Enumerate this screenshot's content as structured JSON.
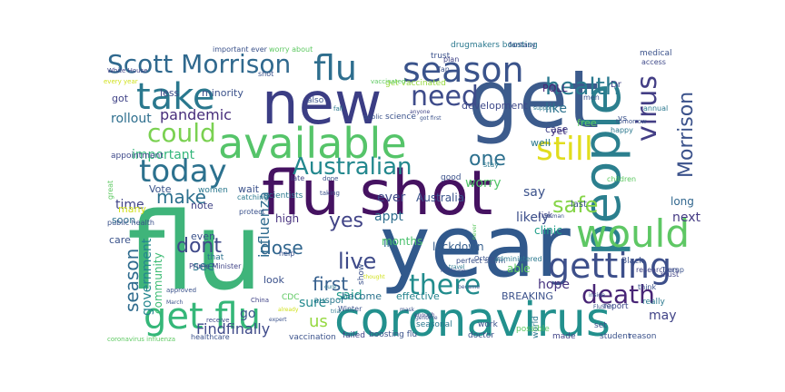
{
  "wordcloud": {
    "words": [
      {
        "text": "flu",
        "color": "#3fb47a"
      },
      {
        "text": "year",
        "color": "#31598c"
      },
      {
        "text": "flu shot",
        "color": "#451261"
      },
      {
        "text": "new",
        "color": "#3b3d84"
      },
      {
        "text": "get",
        "color": "#3c5b8c"
      },
      {
        "text": "coronavirus",
        "color": "#22908d"
      },
      {
        "text": "available",
        "color": "#55c469"
      },
      {
        "text": "people",
        "color": "#2b7f8e"
      },
      {
        "text": "would",
        "color": "#5ec764"
      },
      {
        "text": "take",
        "color": "#2a788e"
      },
      {
        "text": "season",
        "color": "#3a538b"
      },
      {
        "text": "flu",
        "color": "#2e6e8e"
      },
      {
        "text": "today",
        "color": "#2c718e"
      },
      {
        "text": "getting",
        "color": "#3d4f8a"
      },
      {
        "text": "get flu",
        "color": "#35b779"
      },
      {
        "text": "need",
        "color": "#3e4c8a"
      },
      {
        "text": "still",
        "color": "#e1dd1e"
      },
      {
        "text": "Scott Morrison",
        "color": "#30698e"
      },
      {
        "text": "health",
        "color": "#29798e"
      },
      {
        "text": "virus",
        "color": "#433e85"
      },
      {
        "text": "could",
        "color": "#7ad151"
      },
      {
        "text": "Australian",
        "color": "#23888e"
      },
      {
        "text": "there",
        "color": "#228c8d"
      },
      {
        "text": "death",
        "color": "#482576"
      },
      {
        "text": "live",
        "color": "#3e4a89"
      },
      {
        "text": "Morrison",
        "color": "#3b528b"
      },
      {
        "text": "safe",
        "color": "#86d549"
      },
      {
        "text": "one",
        "color": "#2d708e"
      },
      {
        "text": "make",
        "color": "#2d708e"
      },
      {
        "text": "dont",
        "color": "#3e4989"
      },
      {
        "text": "season",
        "color": "#2f6b8e"
      },
      {
        "text": "dose",
        "color": "#31668e"
      },
      {
        "text": "first",
        "color": "#355f8d"
      },
      {
        "text": "us",
        "color": "#95d840"
      },
      {
        "text": "yes",
        "color": "#414487"
      },
      {
        "text": "pandemic",
        "color": "#472d7b"
      },
      {
        "text": "rollout",
        "color": "#2e6f8e"
      },
      {
        "text": "Findfinally",
        "color": "#3e4989"
      },
      {
        "text": "influenza",
        "color": "#2f6b8e"
      },
      {
        "text": "government",
        "color": "#24868e"
      },
      {
        "text": "community",
        "color": "#3dbc74"
      },
      {
        "text": "time",
        "color": "#414487"
      },
      {
        "text": "important",
        "color": "#32b67a"
      },
      {
        "text": "see",
        "color": "#2a778e"
      },
      {
        "text": "said",
        "color": "#1f9a8a"
      },
      {
        "text": "go",
        "color": "#3a538b"
      },
      {
        "text": "sure",
        "color": "#23898e"
      },
      {
        "text": "hope",
        "color": "#46337f"
      },
      {
        "text": "likely",
        "color": "#3c4f8a"
      },
      {
        "text": "next",
        "color": "#443a83"
      },
      {
        "text": "long",
        "color": "#31678e"
      },
      {
        "text": "may",
        "color": "#414487"
      },
      {
        "text": "like",
        "color": "#2c728e"
      },
      {
        "text": "worry",
        "color": "#52c569"
      },
      {
        "text": "say",
        "color": "#3b528b"
      },
      {
        "text": "ever",
        "color": "#3e4989"
      },
      {
        "text": "appt",
        "color": "#2e6e8e"
      },
      {
        "text": "Australia",
        "color": "#3a548c"
      },
      {
        "text": "clinic",
        "color": "#1f9e89"
      },
      {
        "text": "high",
        "color": "#46307e"
      },
      {
        "text": "Im",
        "color": "#2d708e"
      },
      {
        "text": "lockdown",
        "color": "#355e8d"
      },
      {
        "text": "months",
        "color": "#4ac16d"
      },
      {
        "text": "able",
        "color": "#5ec962"
      },
      {
        "text": "BREAKING",
        "color": "#3b518b"
      },
      {
        "text": "effective",
        "color": "#25838e"
      },
      {
        "text": "become",
        "color": "#2c738e"
      },
      {
        "text": "CDC",
        "color": "#5ec962"
      },
      {
        "text": "look",
        "color": "#3b518b"
      },
      {
        "text": "auspol",
        "color": "#2a788e"
      },
      {
        "text": "care",
        "color": "#3a538b"
      },
      {
        "text": "soon",
        "color": "#2d718e"
      },
      {
        "text": "many",
        "color": "#d0e11c"
      },
      {
        "text": "even",
        "color": "#3b528b"
      },
      {
        "text": "note",
        "color": "#414487"
      },
      {
        "text": "that",
        "color": "#2c728e"
      },
      {
        "text": "Vote",
        "color": "#3a538b"
      },
      {
        "text": "women",
        "color": "#2a788e"
      },
      {
        "text": "wait",
        "color": "#3b528b"
      },
      {
        "text": "scientists",
        "color": "#2a788e"
      },
      {
        "text": "less",
        "color": "#3e4989"
      },
      {
        "text": "minority",
        "color": "#3b528b"
      },
      {
        "text": "got",
        "color": "#414487"
      },
      {
        "text": "also",
        "color": "#3b528b"
      },
      {
        "text": "science",
        "color": "#3b528b"
      },
      {
        "text": "development",
        "color": "#3e4989"
      },
      {
        "text": "case",
        "color": "#414487"
      },
      {
        "text": "POLL",
        "color": "#482475"
      },
      {
        "text": "yet",
        "color": "#46337f"
      },
      {
        "text": "well",
        "color": "#2a788e"
      },
      {
        "text": "vs",
        "color": "#3b528b"
      },
      {
        "text": "free",
        "color": "#5ec962"
      },
      {
        "text": "get vaccinated",
        "color": "#95d840"
      },
      {
        "text": "appointment",
        "color": "#3e4989"
      },
      {
        "text": "White House",
        "color": "#414487"
      },
      {
        "text": "every year",
        "color": "#d0e11c"
      },
      {
        "text": "trust",
        "color": "#3b528b"
      },
      {
        "text": "drugmakers boosting",
        "color": "#2a788e"
      },
      {
        "text": "fantasy",
        "color": "#3b528b"
      },
      {
        "text": "plan",
        "color": "#414487"
      },
      {
        "text": "fan",
        "color": "#3b528b"
      },
      {
        "text": "important ever",
        "color": "#3b528b"
      },
      {
        "text": "worry about",
        "color": "#5ec962"
      },
      {
        "text": "vaccinated",
        "color": "#5ec962"
      },
      {
        "text": "shot",
        "color": "#3b528b"
      },
      {
        "text": "fall",
        "color": "#2a788e"
      },
      {
        "text": "medical",
        "color": "#3b528b"
      },
      {
        "text": "access",
        "color": "#3e4989"
      },
      {
        "text": "annual",
        "color": "#2a788e"
      },
      {
        "text": "Dr",
        "color": "#414487"
      },
      {
        "text": "men",
        "color": "#3b528b"
      },
      {
        "text": "tomorrow",
        "color": "#3b528b"
      },
      {
        "text": "happy",
        "color": "#2a788e"
      },
      {
        "text": "children",
        "color": "#5ec962"
      },
      {
        "text": "last",
        "color": "#3b528b"
      },
      {
        "text": "risk",
        "color": "#414487"
      },
      {
        "text": "stay",
        "color": "#2a788e"
      },
      {
        "text": "good",
        "color": "#3b528b"
      },
      {
        "text": "late",
        "color": "#414487"
      },
      {
        "text": "help",
        "color": "#3b528b"
      },
      {
        "text": "catching",
        "color": "#2a788e"
      },
      {
        "text": "protect",
        "color": "#3b528b"
      },
      {
        "text": "public health",
        "color": "#3b528b"
      },
      {
        "text": "great",
        "color": "#5ec962"
      },
      {
        "text": "Prime Minister",
        "color": "#414487"
      },
      {
        "text": "perfect storm",
        "color": "#3b528b"
      },
      {
        "text": "Black",
        "color": "#3b528b"
      },
      {
        "text": "researchers",
        "color": "#414487"
      },
      {
        "text": "Trump",
        "color": "#3b528b"
      },
      {
        "text": "must",
        "color": "#414487"
      },
      {
        "text": "think",
        "color": "#3b528b"
      },
      {
        "text": "report",
        "color": "#3e4989"
      },
      {
        "text": "really",
        "color": "#2a788e"
      },
      {
        "text": "reason",
        "color": "#3b528b"
      },
      {
        "text": "student",
        "color": "#3b528b"
      },
      {
        "text": "made",
        "color": "#414487"
      },
      {
        "text": "set",
        "color": "#3b528b"
      },
      {
        "text": "world",
        "color": "#2a788e"
      },
      {
        "text": "possible",
        "color": "#5ec962"
      },
      {
        "text": "doctor",
        "color": "#3b528b"
      },
      {
        "text": "seasonal",
        "color": "#2a788e"
      },
      {
        "text": "work",
        "color": "#3b528b"
      },
      {
        "text": "boosting flu",
        "color": "#3b528b"
      },
      {
        "text": "failed",
        "color": "#414487"
      },
      {
        "text": "vaccination",
        "color": "#3b528b"
      },
      {
        "text": "healthcare",
        "color": "#3b528b"
      },
      {
        "text": "coronavirus influenza",
        "color": "#5ec962"
      },
      {
        "text": "receive",
        "color": "#3e4989"
      },
      {
        "text": "approved",
        "color": "#3b528b"
      },
      {
        "text": "Winter",
        "color": "#3b528b"
      },
      {
        "text": "October",
        "color": "#3b528b"
      },
      {
        "text": "administered",
        "color": "#2a788e"
      },
      {
        "text": "genome",
        "color": "#3b528b"
      },
      {
        "text": "mask",
        "color": "#3b528b"
      },
      {
        "text": "travel",
        "color": "#2a788e"
      },
      {
        "text": "medicine",
        "color": "#3b528b"
      },
      {
        "text": "China",
        "color": "#414487"
      },
      {
        "text": "March",
        "color": "#3b528b"
      },
      {
        "text": "cure",
        "color": "#2a788e"
      },
      {
        "text": "taking",
        "color": "#3b528b"
      },
      {
        "text": "done",
        "color": "#3b528b"
      },
      {
        "text": "thought",
        "color": "#d0e11c"
      },
      {
        "text": "public",
        "color": "#3b528b"
      },
      {
        "text": "anyone",
        "color": "#414487"
      },
      {
        "text": "human",
        "color": "#3b528b"
      },
      {
        "text": "got first",
        "color": "#3b528b"
      },
      {
        "text": "support",
        "color": "#2a788e"
      },
      {
        "text": "inside",
        "color": "#3b528b"
      },
      {
        "text": "FluShot",
        "color": "#3b528b"
      },
      {
        "text": "enough",
        "color": "#414487"
      },
      {
        "text": "became",
        "color": "#3b528b"
      },
      {
        "text": "show",
        "color": "#3b528b"
      },
      {
        "text": "trial",
        "color": "#2a788e"
      },
      {
        "text": "already",
        "color": "#d0e11c"
      },
      {
        "text": "expert",
        "color": "#3b528b"
      },
      {
        "text": "never",
        "color": "#5ec962"
      },
      {
        "text": "happening",
        "color": "#3b528b"
      }
    ]
  }
}
